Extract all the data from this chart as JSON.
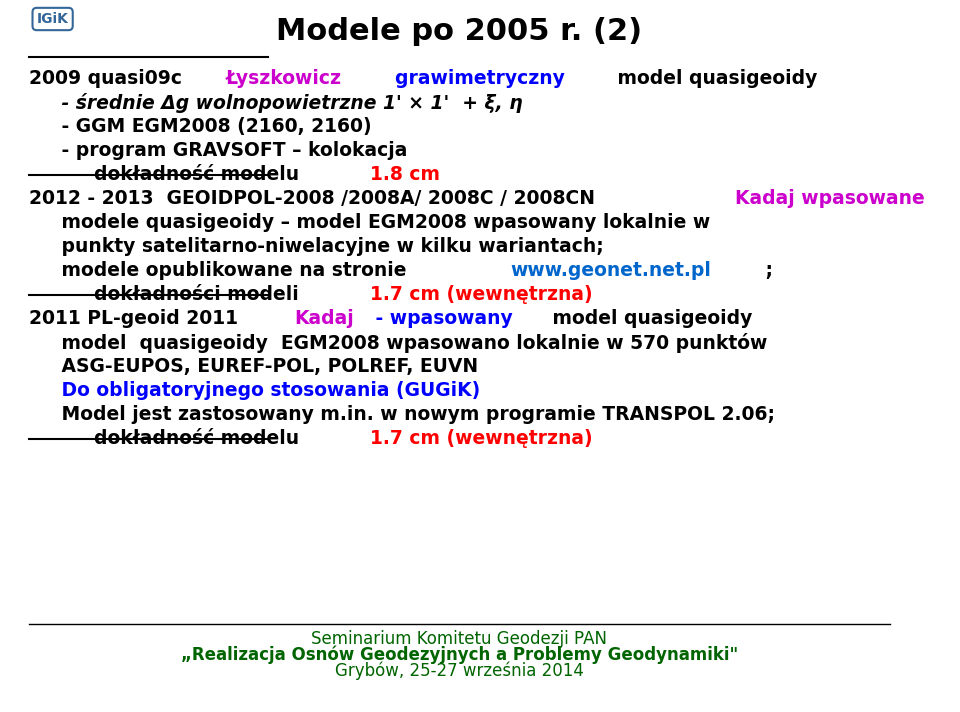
{
  "title": "Modele po 2005 r. (2)",
  "title_fontsize": 22,
  "title_fontweight": "bold",
  "bg_color": "#ffffff",
  "text_color": "#000000",
  "red_color": "#ff0000",
  "magenta_color": "#cc00cc",
  "blue_color": "#0000ff",
  "green_color": "#006400",
  "cyan_link_color": "#0066cc",
  "footer_color": "#006400",
  "main_font": "DejaVu Sans",
  "content_fontsize": 13.5,
  "footer_fontsize": 12,
  "section1": {
    "year": "2009",
    "line1_black": "2009 quasi09c ",
    "line1_magenta": "Łyszkowicz",
    "line1_blue": "    grawimetryczny",
    "line1_black2": " model quasigeoidy",
    "line2": "     - średnie Δg wolnopowietrzne 1' × 1'  + ξ, η",
    "line3": "     - GGM EGM2008 (2160, 2160)",
    "line4": "     - program GRAVSOFT – kolokacja",
    "line5_black": "          dokładność modelu ",
    "line5_red": "1.8 cm"
  },
  "section2": {
    "line1_black": "2012 - 2013  GEOIDPOL-2008 /2008A/ 2008C / 2008CN ",
    "line1_magenta": "Kadaj wpasowane",
    "line2": "     modele quasigeoidy – model EGM2008 wpasowany lokalnie w",
    "line3": "     punkty satelitarno-niwelacyjne w kilku wariantach;",
    "line4_black": "     modele opublikowane na stronie  ",
    "line4_link": "www.geonet.net.pl",
    "line4_black2": " ;",
    "line5_black": "          dokładności modeli ",
    "line5_red": "1.7 cm (wewnętrzna)"
  },
  "section3": {
    "line1_black": "2011 PL-geoid 2011 ",
    "line1_magenta": "Kadaj",
    "line1_blue": " - wpasowany",
    "line1_black2": " model quasigeoidy",
    "line2": "     model  quasigeoidy  EGM2008 wpasowano lokalnie w 570 punktów",
    "line3": "     ASG-EUPOS, EUREF-POL, POLREF, EUVN",
    "line4_blue": "     Do obligatoryjnego stosowania (GUGiK)",
    "line5_black": "     Model jest zastosowany m.in. w nowym programie TRANSPOL 2.06;",
    "line6_black": "          dokładność modelu ",
    "line6_red": "1.7 cm (wewnętrzna)"
  },
  "footer_line1": "Seminarium Komitetu Geodezji PAN",
  "footer_line2": "„Realizacja Osnów Geodezyjnych a Problemy Geodynamiki\"",
  "footer_line3": "Grybów, 25-27 września 2014"
}
